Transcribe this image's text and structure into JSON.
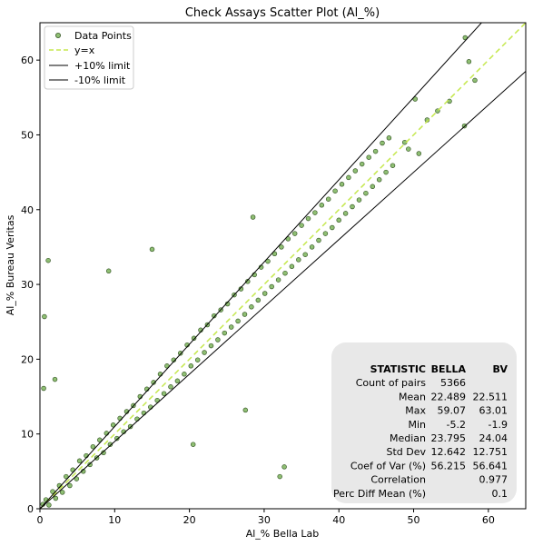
{
  "chart_data": {
    "type": "scatter",
    "title": "Check Assays Scatter Plot (Al_%)",
    "xlabel": "Al_% Bella Lab",
    "ylabel": "Al_% Bureau Veritas",
    "xlim": [
      0,
      65
    ],
    "ylim": [
      0,
      65
    ],
    "xticks": [
      0,
      10,
      20,
      30,
      40,
      50,
      60
    ],
    "yticks": [
      0,
      10,
      20,
      30,
      40,
      50,
      60
    ],
    "grid": false,
    "legend_position": "top-left",
    "colors": {
      "points_fill": "#8fbf73",
      "points_edge": "#3a5a2a",
      "identity_line": "#c5e84e",
      "limit_lines": "#000000",
      "stats_box": "#e8e8e8"
    },
    "series": [
      {
        "name": "Data Points",
        "kind": "points",
        "note_outliers": [
          [
            0.6,
            25.7
          ],
          [
            1.1,
            33.2
          ],
          [
            2.0,
            17.3
          ],
          [
            0.5,
            16.1
          ],
          [
            9.2,
            31.8
          ],
          [
            15.0,
            34.7
          ],
          [
            32.1,
            4.3
          ],
          [
            32.7,
            5.6
          ],
          [
            27.5,
            13.2
          ],
          [
            20.5,
            8.6
          ],
          [
            28.5,
            39.0
          ],
          [
            56.8,
            51.2
          ],
          [
            57.4,
            59.8
          ],
          [
            56.9,
            63.0
          ],
          [
            58.2,
            57.3
          ],
          [
            50.2,
            54.8
          ],
          [
            53.2,
            53.2
          ],
          [
            54.8,
            54.5
          ],
          [
            51.8,
            52.0
          ],
          [
            48.8,
            49.0
          ],
          [
            49.3,
            48.1
          ],
          [
            50.7,
            47.5
          ]
        ],
        "bulk": [
          [
            0.4,
            0.6
          ],
          [
            0.8,
            1.2
          ],
          [
            1.2,
            0.5
          ],
          [
            1.7,
            2.3
          ],
          [
            2.1,
            1.4
          ],
          [
            2.6,
            3.1
          ],
          [
            3.0,
            2.2
          ],
          [
            3.5,
            4.3
          ],
          [
            4.0,
            3.1
          ],
          [
            4.4,
            5.2
          ],
          [
            4.9,
            4.0
          ],
          [
            5.3,
            6.4
          ],
          [
            5.8,
            5.0
          ],
          [
            6.2,
            7.1
          ],
          [
            6.7,
            5.9
          ],
          [
            7.1,
            8.3
          ],
          [
            7.6,
            6.8
          ],
          [
            8.0,
            9.2
          ],
          [
            8.5,
            7.5
          ],
          [
            8.9,
            10.1
          ],
          [
            9.4,
            8.6
          ],
          [
            9.8,
            11.2
          ],
          [
            10.3,
            9.4
          ],
          [
            10.7,
            12.1
          ],
          [
            11.2,
            10.3
          ],
          [
            11.6,
            13.0
          ],
          [
            12.1,
            11.0
          ],
          [
            12.5,
            13.8
          ],
          [
            13.0,
            12.0
          ],
          [
            13.4,
            15.0
          ],
          [
            13.9,
            12.8
          ],
          [
            14.3,
            16.0
          ],
          [
            14.8,
            13.6
          ],
          [
            15.2,
            16.9
          ],
          [
            15.7,
            14.5
          ],
          [
            16.1,
            18.0
          ],
          [
            16.6,
            15.4
          ],
          [
            17.0,
            19.1
          ],
          [
            17.5,
            16.3
          ],
          [
            17.9,
            19.9
          ],
          [
            18.4,
            17.1
          ],
          [
            18.8,
            20.8
          ],
          [
            19.3,
            18.0
          ],
          [
            19.7,
            21.9
          ],
          [
            20.2,
            19.1
          ],
          [
            20.6,
            22.8
          ],
          [
            21.1,
            19.9
          ],
          [
            21.5,
            23.9
          ],
          [
            22.0,
            20.9
          ],
          [
            22.4,
            24.6
          ],
          [
            22.9,
            21.8
          ],
          [
            23.3,
            25.8
          ],
          [
            23.8,
            22.6
          ],
          [
            24.2,
            26.6
          ],
          [
            24.7,
            23.5
          ],
          [
            25.1,
            27.4
          ],
          [
            25.6,
            24.3
          ],
          [
            26.0,
            28.6
          ],
          [
            26.5,
            25.1
          ],
          [
            26.9,
            29.4
          ],
          [
            27.4,
            26.0
          ],
          [
            27.8,
            30.4
          ],
          [
            28.3,
            27.0
          ],
          [
            28.7,
            31.3
          ],
          [
            29.2,
            27.9
          ],
          [
            29.6,
            32.3
          ],
          [
            30.1,
            28.8
          ],
          [
            30.5,
            33.1
          ],
          [
            31.0,
            29.7
          ],
          [
            31.4,
            34.1
          ],
          [
            31.9,
            30.6
          ],
          [
            32.3,
            35.0
          ],
          [
            32.8,
            31.5
          ],
          [
            33.2,
            36.1
          ],
          [
            33.7,
            32.4
          ],
          [
            34.1,
            36.8
          ],
          [
            34.6,
            33.3
          ],
          [
            35.0,
            37.9
          ],
          [
            35.5,
            34.0
          ],
          [
            35.9,
            38.8
          ],
          [
            36.4,
            35.0
          ],
          [
            36.8,
            39.6
          ],
          [
            37.3,
            35.9
          ],
          [
            37.7,
            40.6
          ],
          [
            38.2,
            36.8
          ],
          [
            38.6,
            41.4
          ],
          [
            39.1,
            37.6
          ],
          [
            39.5,
            42.5
          ],
          [
            40.0,
            38.6
          ],
          [
            40.4,
            43.4
          ],
          [
            40.9,
            39.5
          ],
          [
            41.3,
            44.3
          ],
          [
            41.8,
            40.4
          ],
          [
            42.2,
            45.2
          ],
          [
            42.7,
            41.3
          ],
          [
            43.1,
            46.1
          ],
          [
            43.6,
            42.2
          ],
          [
            44.0,
            47.0
          ],
          [
            44.5,
            43.1
          ],
          [
            44.9,
            47.8
          ],
          [
            45.4,
            44.0
          ],
          [
            45.8,
            48.9
          ],
          [
            46.3,
            45.0
          ],
          [
            46.7,
            49.6
          ],
          [
            47.2,
            45.9
          ]
        ]
      },
      {
        "name": "y=x",
        "kind": "line",
        "x": [
          0,
          65
        ],
        "y": [
          0,
          65
        ]
      },
      {
        "name": "+10% limit",
        "kind": "line",
        "x": [
          0,
          65
        ],
        "y": [
          0,
          71.5
        ]
      },
      {
        "name": "-10% limit",
        "kind": "line",
        "x": [
          0,
          65
        ],
        "y": [
          0,
          58.5
        ]
      }
    ],
    "stats_table": {
      "headers": [
        "STATISTIC",
        "BELLA",
        "BV"
      ],
      "rows": [
        [
          "Count of pairs",
          "5366",
          ""
        ],
        [
          "Mean",
          "22.489",
          "22.511"
        ],
        [
          "Max",
          "59.07",
          "63.01"
        ],
        [
          "Min",
          "-5.2",
          "-1.9"
        ],
        [
          "Median",
          "23.795",
          "24.04"
        ],
        [
          "Std Dev",
          "12.642",
          "12.751"
        ],
        [
          "Coef of Var (%)",
          "56.215",
          "56.641"
        ],
        [
          "Correlation",
          "",
          "0.977"
        ],
        [
          "Perc Diff Mean (%)",
          "",
          "0.1"
        ]
      ]
    }
  }
}
